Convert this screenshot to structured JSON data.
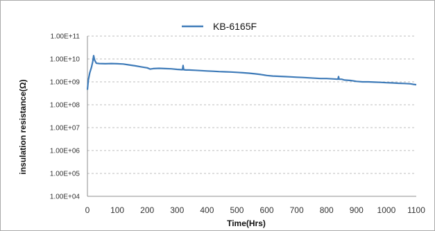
{
  "chart_data": {
    "type": "line",
    "title": "",
    "xlabel": "Time(Hrs)",
    "ylabel": "insulation resistance(Ω)",
    "x_ticks": [
      0,
      100,
      200,
      300,
      400,
      500,
      600,
      700,
      800,
      900,
      1000,
      1100
    ],
    "y_ticks": [
      {
        "value": 10000,
        "label": "1.00E+04"
      },
      {
        "value": 100000,
        "label": "1.00E+05"
      },
      {
        "value": 1000000,
        "label": "1.00E+06"
      },
      {
        "value": 10000000,
        "label": "1.00E+07"
      },
      {
        "value": 100000000,
        "label": "1.00E+08"
      },
      {
        "value": 1000000000,
        "label": "1.00E+09"
      },
      {
        "value": 10000000000,
        "label": "1.00E+10"
      },
      {
        "value": 100000000000,
        "label": "1.00E+11"
      }
    ],
    "xlim": [
      0,
      1100
    ],
    "ylim": [
      10000,
      100000000000
    ],
    "y_scale": "log",
    "grid": true,
    "legend_position": "top-center",
    "series": [
      {
        "name": "KB-6165F",
        "color": "#3d7ab8",
        "x": [
          0,
          3,
          8,
          14,
          18,
          21,
          24,
          30,
          40,
          60,
          80,
          100,
          120,
          140,
          160,
          180,
          200,
          210,
          220,
          240,
          260,
          280,
          300,
          318,
          320,
          322,
          330,
          340,
          360,
          380,
          400,
          420,
          440,
          460,
          480,
          500,
          520,
          540,
          560,
          580,
          600,
          620,
          640,
          660,
          680,
          700,
          720,
          740,
          760,
          780,
          800,
          820,
          838,
          840,
          842,
          850,
          860,
          880,
          900,
          920,
          940,
          960,
          980,
          1000,
          1020,
          1040,
          1060,
          1080,
          1090,
          1100
        ],
        "y": [
          450000000,
          1200000000,
          2500000000,
          4500000000,
          8000000000,
          14000000000,
          9000000000,
          6500000000,
          6300000000,
          6200000000,
          6300000000,
          6200000000,
          6000000000,
          5500000000,
          5000000000,
          4500000000,
          4100000000,
          3600000000,
          3800000000,
          3900000000,
          3800000000,
          3700000000,
          3500000000,
          3400000000,
          5200000000,
          3400000000,
          3300000000,
          3300000000,
          3200000000,
          3100000000,
          3000000000,
          2900000000,
          2800000000,
          2750000000,
          2700000000,
          2600000000,
          2500000000,
          2400000000,
          2250000000,
          2100000000,
          1900000000,
          1800000000,
          1750000000,
          1700000000,
          1650000000,
          1600000000,
          1550000000,
          1500000000,
          1450000000,
          1400000000,
          1400000000,
          1350000000,
          1300000000,
          1700000000,
          1300000000,
          1300000000,
          1200000000,
          1150000000,
          1050000000,
          1000000000,
          1000000000,
          970000000,
          950000000,
          920000000,
          900000000,
          870000000,
          850000000,
          820000000,
          780000000,
          750000000
        ]
      }
    ]
  }
}
